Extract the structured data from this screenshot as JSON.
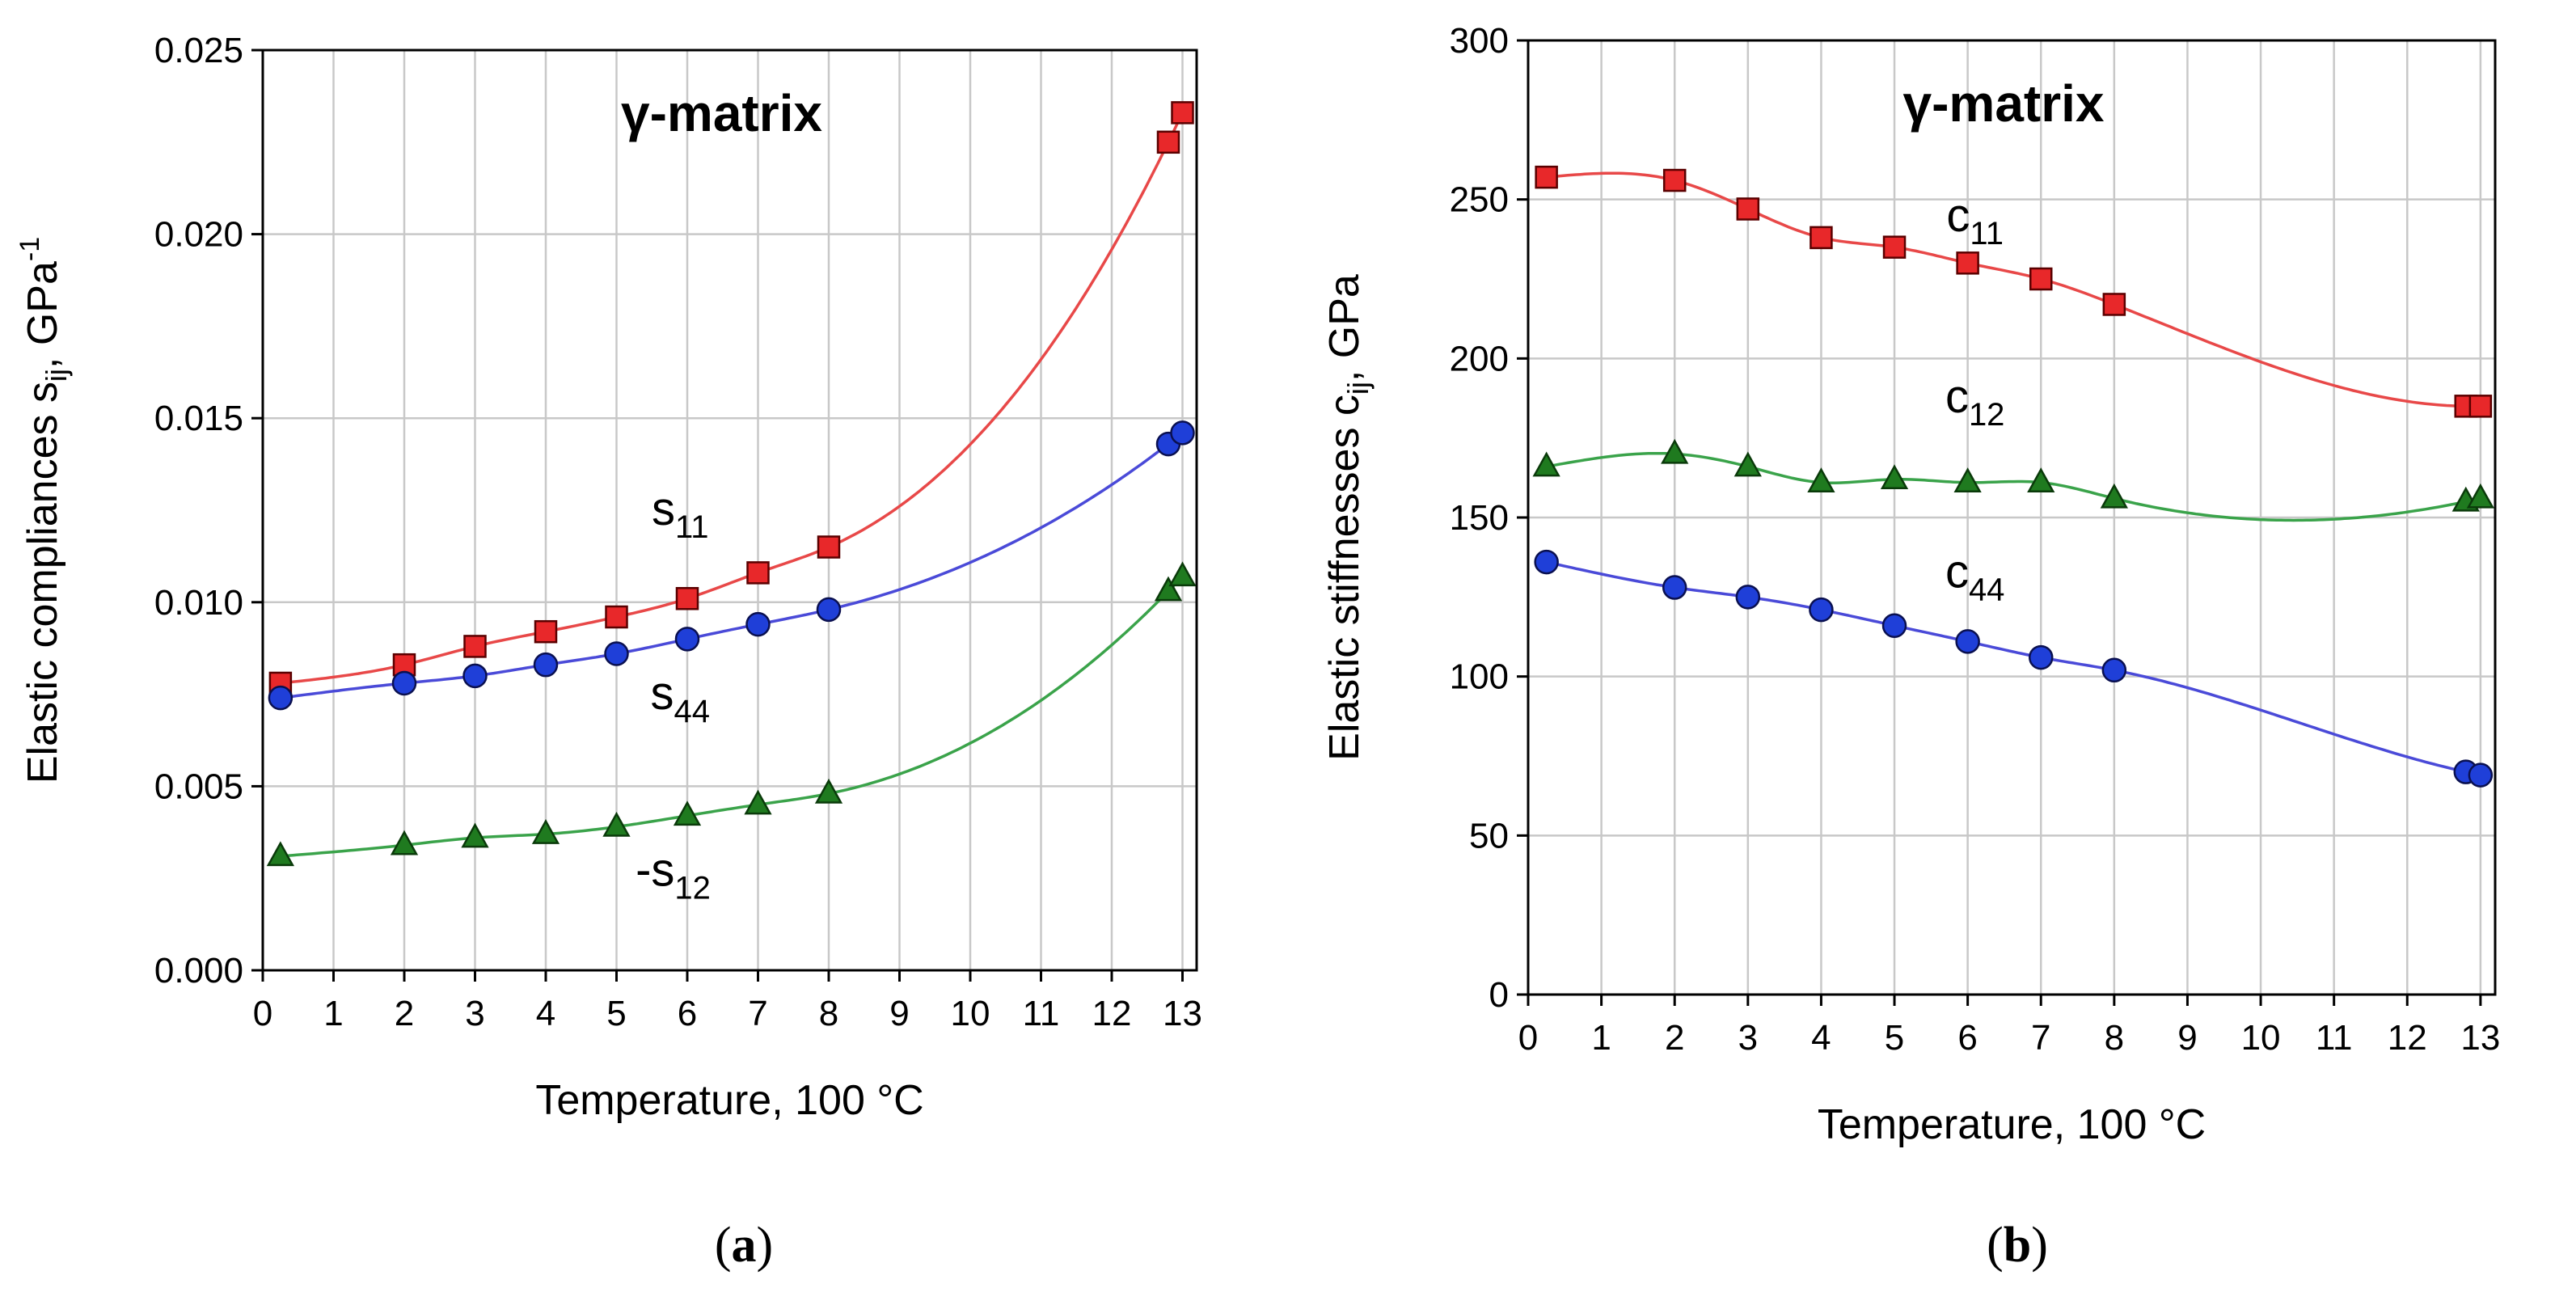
{
  "chart_data": [
    {
      "type": "scatter",
      "title": "γ-matrix",
      "xlabel": "Temperature, 100 °C",
      "ylabel": "Elastic compliances s_ij, GPa^-1",
      "ylabel_main": "Elastic compliances s",
      "ylabel_sub": "ij",
      "ylabel_rest": ", GPa",
      "ylabel_sup": "-1",
      "xlim": [
        0,
        13.2
      ],
      "ylim": [
        0,
        0.025
      ],
      "xticks": [
        0,
        1,
        2,
        3,
        4,
        5,
        6,
        7,
        8,
        9,
        10,
        11,
        12,
        13
      ],
      "yticks": [
        0.0,
        0.005,
        0.01,
        0.015,
        0.02,
        0.025
      ],
      "ytick_labels": [
        "0.000",
        "0.005",
        "0.010",
        "0.015",
        "0.020",
        "0.025"
      ],
      "caption_left": "(",
      "caption_letter": "a",
      "caption_right": ")",
      "series": [
        {
          "name": "s11",
          "label_main": "s",
          "label_sub": "11",
          "marker": "square",
          "color": "#e8282a",
          "line_color": "#e84848",
          "x": [
            0.25,
            2,
            3,
            4,
            5,
            6,
            7,
            8,
            12.8,
            13
          ],
          "values": [
            0.0078,
            0.0083,
            0.0088,
            0.0092,
            0.0096,
            0.0101,
            0.0108,
            0.0115,
            0.0225,
            0.0233
          ],
          "label_pos": [
            5.9,
            0.0121
          ]
        },
        {
          "name": "s44",
          "label_main": "s",
          "label_sub": "44",
          "marker": "circle",
          "color": "#1f3fd8",
          "line_color": "#4a4ad8",
          "x": [
            0.25,
            2,
            3,
            4,
            5,
            6,
            7,
            8,
            12.8,
            13
          ],
          "values": [
            0.0074,
            0.0078,
            0.008,
            0.0083,
            0.0086,
            0.009,
            0.0094,
            0.0098,
            0.0143,
            0.0146
          ],
          "label_pos": [
            5.9,
            0.0071
          ]
        },
        {
          "name": "-s12",
          "label_main": "-s",
          "label_sub": "12",
          "marker": "triangle",
          "color": "#1f7a1f",
          "line_color": "#3aa34a",
          "x": [
            0.25,
            2,
            3,
            4,
            5,
            6,
            7,
            8,
            12.8,
            13
          ],
          "values": [
            0.0031,
            0.0034,
            0.0036,
            0.0037,
            0.0039,
            0.0042,
            0.0045,
            0.0048,
            0.0103,
            0.0107
          ],
          "label_pos": [
            5.8,
            0.0023
          ]
        }
      ]
    },
    {
      "type": "scatter",
      "title": "γ-matrix",
      "xlabel": "Temperature, 100 °C",
      "ylabel": "Elastic stiffnesses c_ij, GPa",
      "ylabel_main": "Elastic stiffnesses c",
      "ylabel_sub": "ij",
      "ylabel_rest": ", GPa",
      "ylabel_sup": "",
      "xlim": [
        0,
        13.2
      ],
      "ylim": [
        0,
        300
      ],
      "xticks": [
        0,
        1,
        2,
        3,
        4,
        5,
        6,
        7,
        8,
        9,
        10,
        11,
        12,
        13
      ],
      "yticks": [
        0,
        50,
        100,
        150,
        200,
        250,
        300
      ],
      "ytick_labels": [
        "0",
        "50",
        "100",
        "150",
        "200",
        "250",
        "300"
      ],
      "caption_left": "(",
      "caption_letter": "b",
      "caption_right": ")",
      "series": [
        {
          "name": "c11",
          "label_main": "c",
          "label_sub": "11",
          "marker": "square",
          "color": "#e8282a",
          "line_color": "#e84848",
          "x": [
            0.25,
            2,
            3,
            4,
            5,
            6,
            7,
            8,
            12.8,
            13
          ],
          "values": [
            257,
            256,
            247,
            238,
            235,
            230,
            225,
            217,
            185,
            185
          ],
          "label_pos": [
            6.1,
            240
          ]
        },
        {
          "name": "c12",
          "label_main": "c",
          "label_sub": "12",
          "marker": "triangle",
          "color": "#1f7a1f",
          "line_color": "#3aa34a",
          "x": [
            0.25,
            2,
            3,
            4,
            5,
            6,
            7,
            8,
            12.8,
            13
          ],
          "values": [
            166,
            170,
            166,
            161,
            162,
            161,
            161,
            156,
            155,
            156
          ],
          "label_pos": [
            6.1,
            183
          ]
        },
        {
          "name": "c44",
          "label_main": "c",
          "label_sub": "44",
          "marker": "circle",
          "color": "#1f3fd8",
          "line_color": "#4a4ad8",
          "x": [
            0.25,
            2,
            3,
            4,
            5,
            6,
            7,
            8,
            12.8,
            13
          ],
          "values": [
            136,
            128,
            125,
            121,
            116,
            111,
            106,
            102,
            70,
            69
          ],
          "label_pos": [
            6.1,
            128
          ]
        }
      ]
    }
  ]
}
